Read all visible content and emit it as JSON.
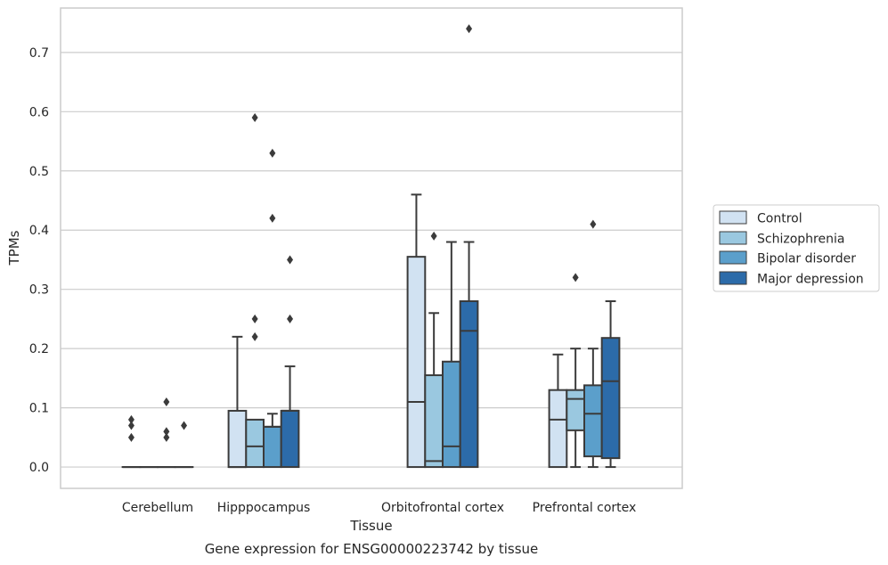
{
  "caption": "Gene expression for ENSG00000223742 by tissue",
  "chart_data": {
    "type": "boxplot",
    "title": "",
    "xlabel": "Tissue",
    "ylabel": "TPMs",
    "ylim": [
      -0.036,
      0.775
    ],
    "yticks": [
      "0.0",
      "0.1",
      "0.2",
      "0.3",
      "0.4",
      "0.5",
      "0.6",
      "0.7"
    ],
    "grid": "horizontal",
    "legend_position": "right",
    "categories": [
      "Cerebellum",
      "Hipppocampus",
      "Orbitofrontal cortex",
      "Prefrontal cortex"
    ],
    "series": [
      {
        "name": "Control",
        "color": "#d1e2f2",
        "boxes": [
          {
            "q1": 0,
            "median": 0,
            "q3": 0,
            "whisker_low": 0,
            "whisker_high": 0,
            "outliers": [
              0.08,
              0.07,
              0.05
            ]
          },
          {
            "q1": 0,
            "median": 0,
            "q3": 0.095,
            "whisker_low": 0,
            "whisker_high": 0.22,
            "outliers": []
          },
          {
            "q1": 0,
            "median": 0.11,
            "q3": 0.355,
            "whisker_low": 0,
            "whisker_high": 0.46,
            "outliers": []
          },
          {
            "q1": 0,
            "median": 0.08,
            "q3": 0.13,
            "whisker_low": 0,
            "whisker_high": 0.19,
            "outliers": []
          }
        ]
      },
      {
        "name": "Schizophrenia",
        "color": "#9ac8e0",
        "boxes": [
          {
            "q1": 0,
            "median": 0,
            "q3": 0,
            "whisker_low": 0,
            "whisker_high": 0,
            "outliers": []
          },
          {
            "q1": 0,
            "median": 0.035,
            "q3": 0.08,
            "whisker_low": 0,
            "whisker_high": 0.08,
            "outliers": [
              0.59,
              0.25,
              0.22
            ]
          },
          {
            "q1": 0,
            "median": 0.01,
            "q3": 0.155,
            "whisker_low": 0,
            "whisker_high": 0.26,
            "outliers": [
              0.39
            ]
          },
          {
            "q1": 0.062,
            "median": 0.115,
            "q3": 0.13,
            "whisker_low": 0,
            "whisker_high": 0.2,
            "outliers": [
              0.32
            ]
          }
        ]
      },
      {
        "name": "Bipolar disorder",
        "color": "#5b9fcb",
        "boxes": [
          {
            "q1": 0,
            "median": 0,
            "q3": 0,
            "whisker_low": 0,
            "whisker_high": 0,
            "outliers": [
              0.11,
              0.06,
              0.05
            ]
          },
          {
            "q1": 0,
            "median": 0.068,
            "q3": 0.068,
            "whisker_low": 0,
            "whisker_high": 0.09,
            "outliers": [
              0.53,
              0.42
            ]
          },
          {
            "q1": 0,
            "median": 0.035,
            "q3": 0.178,
            "whisker_low": 0,
            "whisker_high": 0.38,
            "outliers": []
          },
          {
            "q1": 0.018,
            "median": 0.09,
            "q3": 0.138,
            "whisker_low": 0,
            "whisker_high": 0.2,
            "outliers": [
              0.41
            ]
          }
        ]
      },
      {
        "name": "Major depression",
        "color": "#2c6ba9",
        "boxes": [
          {
            "q1": 0,
            "median": 0,
            "q3": 0,
            "whisker_low": 0,
            "whisker_high": 0,
            "outliers": [
              0.07
            ]
          },
          {
            "q1": 0,
            "median": 0.095,
            "q3": 0.095,
            "whisker_low": 0,
            "whisker_high": 0.17,
            "outliers": [
              0.35,
              0.25
            ]
          },
          {
            "q1": 0,
            "median": 0.23,
            "q3": 0.28,
            "whisker_low": 0,
            "whisker_high": 0.38,
            "outliers": [
              0.74
            ]
          },
          {
            "q1": 0.015,
            "median": 0.145,
            "q3": 0.218,
            "whisker_low": 0,
            "whisker_high": 0.28,
            "outliers": []
          }
        ]
      }
    ]
  }
}
